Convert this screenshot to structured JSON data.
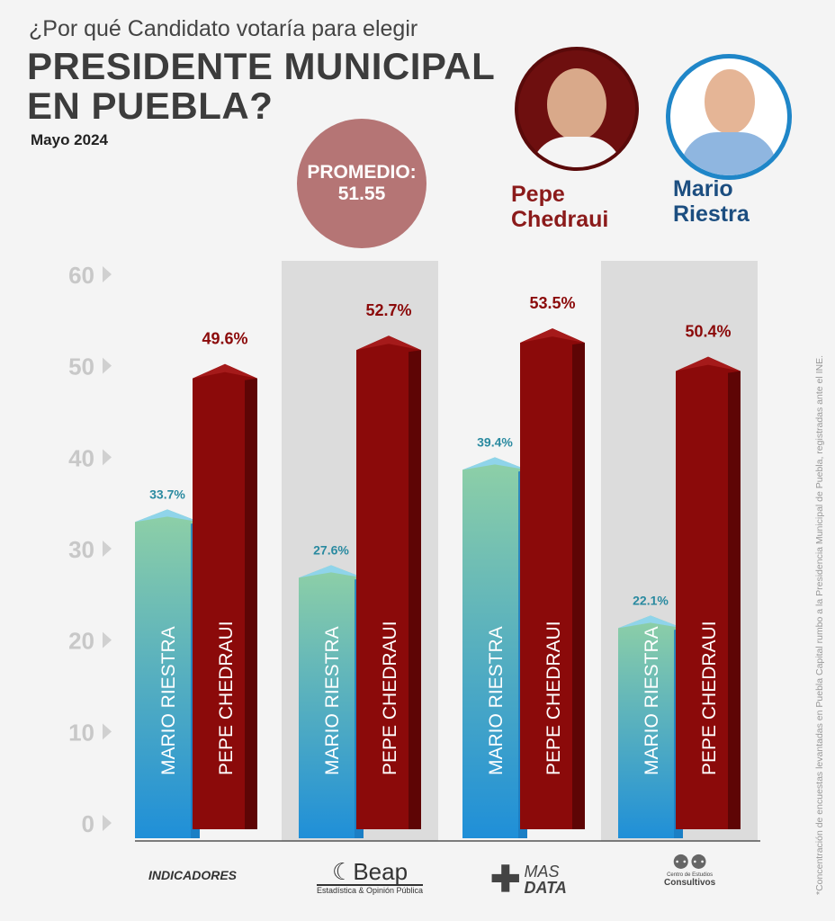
{
  "header": {
    "question": "¿Por qué Candidato votaría para elegir",
    "title_line1": "PRESIDENTE MUNICIPAL",
    "title_line2": "EN PUEBLA?",
    "date": "Mayo 2024"
  },
  "promedio": {
    "label": "PROMEDIO:",
    "value": "51.55"
  },
  "candidates": [
    {
      "first": "Pepe",
      "last": "Chedraui",
      "color": "#8b1a1a"
    },
    {
      "first": "Mario",
      "last": "Riestra",
      "color": "#1c4e80"
    }
  ],
  "footnote": "*Concentración de encuestas levantadas en Puebla Capital rumbo a la Presidencia Municipal de Puebla, registradas ante el INE.",
  "logos": [
    "INDICADORES",
    "Beap",
    "Estadística & Opinión Pública",
    "MAS",
    "DATA",
    "Centro de Estudios",
    "Consultivos"
  ],
  "chart_data": {
    "type": "bar",
    "categories": [
      "INDICADORES",
      "Beap",
      "MAS DATA",
      "Centro de Estudios Consultivos"
    ],
    "series": [
      {
        "name": "MARIO RIESTRA",
        "values": [
          33.7,
          27.6,
          39.4,
          22.1
        ],
        "labels": [
          "33.7%",
          "27.6%",
          "39.4%",
          "22.1%"
        ],
        "color": "#3aa0d8"
      },
      {
        "name": "PEPE CHEDRAUI",
        "values": [
          49.6,
          52.7,
          53.5,
          50.4
        ],
        "labels": [
          "49.6%",
          "52.7%",
          "53.5%",
          "50.4%"
        ],
        "color": "#8b0a0a"
      }
    ],
    "yticks": [
      0,
      10,
      20,
      30,
      40,
      50,
      60
    ],
    "ylim": [
      0,
      60
    ],
    "grid": false
  }
}
